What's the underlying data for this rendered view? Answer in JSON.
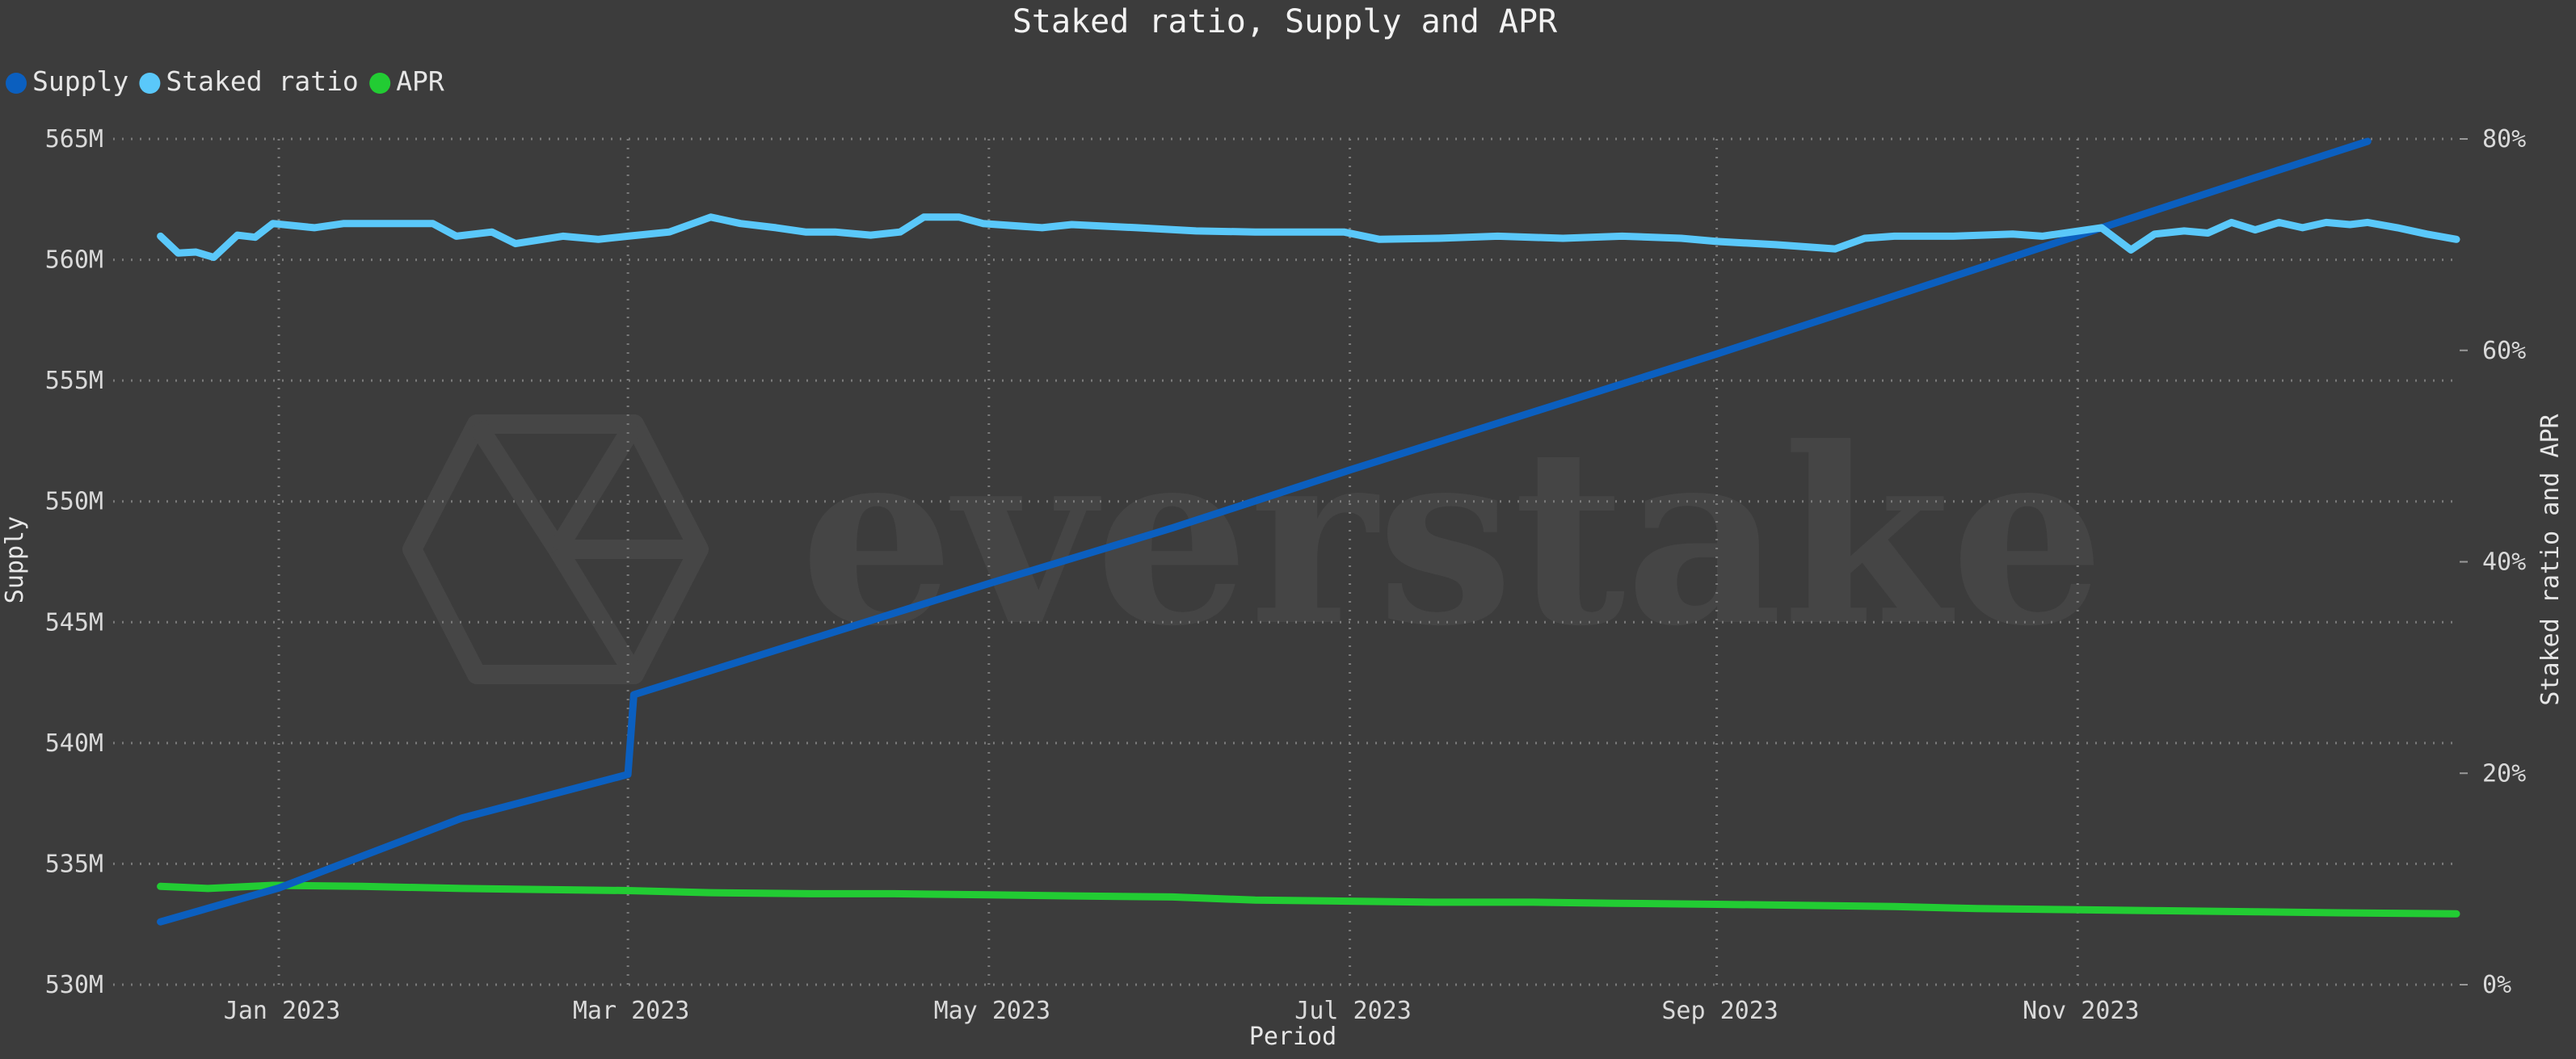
{
  "chart_data": {
    "type": "line",
    "title": "Staked ratio, Supply and APR",
    "xlabel": "Period",
    "ylabel_left": "Supply",
    "ylabel_right": "Staked ratio and APR",
    "watermark": "everstake",
    "x_ticks": [
      "Jan 2023",
      "Mar 2023",
      "May 2023",
      "Jul 2023",
      "Sep 2023",
      "Nov 2023"
    ],
    "x_tick_dates": [
      "2023-01-01",
      "2023-03-01",
      "2023-05-01",
      "2023-07-01",
      "2023-09-01",
      "2023-11-01"
    ],
    "x_range": [
      "2022-12-04",
      "2024-01-04"
    ],
    "y_left_ticks": [
      "530M",
      "535M",
      "540M",
      "545M",
      "550M",
      "555M",
      "560M",
      "565M"
    ],
    "y_left_range": [
      530,
      565
    ],
    "y_left_unit": "M",
    "y_right_ticks": [
      "0%",
      "20%",
      "40%",
      "60%",
      "80%"
    ],
    "y_right_range": [
      0,
      80
    ],
    "grid": true,
    "legend_position": "top-left",
    "series": [
      {
        "name": "Supply",
        "axis": "left",
        "color": "#0b5fbf",
        "points": [
          [
            "2022-12-12",
            532.6
          ],
          [
            "2023-01-01",
            534.0
          ],
          [
            "2023-02-01",
            536.9
          ],
          [
            "2023-03-01",
            538.7
          ],
          [
            "2023-03-02",
            542.0
          ],
          [
            "2023-04-01",
            544.3
          ],
          [
            "2023-05-01",
            546.6
          ],
          [
            "2023-06-01",
            548.9
          ],
          [
            "2023-07-01",
            551.3
          ],
          [
            "2023-08-01",
            553.7
          ],
          [
            "2023-09-01",
            556.1
          ],
          [
            "2023-10-01",
            558.5
          ],
          [
            "2023-11-01",
            561.0
          ],
          [
            "2023-12-01",
            563.4
          ],
          [
            "2023-12-20",
            564.9
          ]
        ]
      },
      {
        "name": "Staked ratio",
        "axis": "right",
        "color": "#5ac8fa",
        "points": [
          [
            "2022-12-12",
            70.8
          ],
          [
            "2022-12-15",
            69.2
          ],
          [
            "2022-12-18",
            69.3
          ],
          [
            "2022-12-21",
            68.8
          ],
          [
            "2022-12-25",
            70.9
          ],
          [
            "2022-12-28",
            70.7
          ],
          [
            "2022-12-31",
            72.0
          ],
          [
            "2023-01-07",
            71.6
          ],
          [
            "2023-01-12",
            72.0
          ],
          [
            "2023-01-20",
            72.0
          ],
          [
            "2023-01-27",
            72.0
          ],
          [
            "2023-01-31",
            70.8
          ],
          [
            "2023-02-06",
            71.2
          ],
          [
            "2023-02-10",
            70.1
          ],
          [
            "2023-02-18",
            70.8
          ],
          [
            "2023-02-24",
            70.5
          ],
          [
            "2023-03-01",
            70.8
          ],
          [
            "2023-03-08",
            71.2
          ],
          [
            "2023-03-15",
            72.6
          ],
          [
            "2023-03-20",
            72.0
          ],
          [
            "2023-03-26",
            71.6
          ],
          [
            "2023-03-31",
            71.2
          ],
          [
            "2023-04-05",
            71.2
          ],
          [
            "2023-04-11",
            70.9
          ],
          [
            "2023-04-16",
            71.2
          ],
          [
            "2023-04-20",
            72.6
          ],
          [
            "2023-04-26",
            72.6
          ],
          [
            "2023-04-30",
            72.0
          ],
          [
            "2023-05-10",
            71.6
          ],
          [
            "2023-05-15",
            71.9
          ],
          [
            "2023-05-26",
            71.6
          ],
          [
            "2023-06-05",
            71.3
          ],
          [
            "2023-06-15",
            71.2
          ],
          [
            "2023-06-30",
            71.2
          ],
          [
            "2023-07-06",
            70.5
          ],
          [
            "2023-07-16",
            70.6
          ],
          [
            "2023-07-26",
            70.8
          ],
          [
            "2023-08-06",
            70.6
          ],
          [
            "2023-08-16",
            70.8
          ],
          [
            "2023-08-26",
            70.6
          ],
          [
            "2023-09-01",
            70.3
          ],
          [
            "2023-09-11",
            70.0
          ],
          [
            "2023-09-21",
            69.6
          ],
          [
            "2023-09-26",
            70.6
          ],
          [
            "2023-10-01",
            70.8
          ],
          [
            "2023-10-11",
            70.8
          ],
          [
            "2023-10-21",
            71.0
          ],
          [
            "2023-10-26",
            70.8
          ],
          [
            "2023-10-31",
            71.2
          ],
          [
            "2023-11-05",
            71.6
          ],
          [
            "2023-11-10",
            69.5
          ],
          [
            "2023-11-14",
            71.0
          ],
          [
            "2023-11-19",
            71.3
          ],
          [
            "2023-11-23",
            71.1
          ],
          [
            "2023-11-27",
            72.1
          ],
          [
            "2023-12-01",
            71.4
          ],
          [
            "2023-12-05",
            72.1
          ],
          [
            "2023-12-09",
            71.6
          ],
          [
            "2023-12-13",
            72.1
          ],
          [
            "2023-12-17",
            71.9
          ],
          [
            "2023-12-20",
            72.1
          ],
          [
            "2023-12-25",
            71.6
          ],
          [
            "2023-12-30",
            71.0
          ],
          [
            "2024-01-04",
            70.5
          ]
        ]
      },
      {
        "name": "APR",
        "axis": "right",
        "color": "#22cc33",
        "points": [
          [
            "2022-12-12",
            9.3
          ],
          [
            "2022-12-20",
            9.1
          ],
          [
            "2022-12-31",
            9.4
          ],
          [
            "2023-01-15",
            9.3
          ],
          [
            "2023-02-01",
            9.1
          ],
          [
            "2023-02-15",
            9.0
          ],
          [
            "2023-03-01",
            8.9
          ],
          [
            "2023-03-15",
            8.7
          ],
          [
            "2023-04-01",
            8.6
          ],
          [
            "2023-04-15",
            8.6
          ],
          [
            "2023-05-01",
            8.5
          ],
          [
            "2023-05-15",
            8.4
          ],
          [
            "2023-06-01",
            8.3
          ],
          [
            "2023-06-15",
            8.0
          ],
          [
            "2023-07-01",
            7.9
          ],
          [
            "2023-07-15",
            7.8
          ],
          [
            "2023-08-01",
            7.8
          ],
          [
            "2023-08-15",
            7.7
          ],
          [
            "2023-09-01",
            7.6
          ],
          [
            "2023-09-15",
            7.5
          ],
          [
            "2023-10-01",
            7.4
          ],
          [
            "2023-10-15",
            7.2
          ],
          [
            "2023-10-31",
            7.1
          ],
          [
            "2023-11-15",
            7.0
          ],
          [
            "2023-12-01",
            6.9
          ],
          [
            "2023-12-15",
            6.8
          ],
          [
            "2024-01-04",
            6.7
          ]
        ]
      }
    ]
  }
}
